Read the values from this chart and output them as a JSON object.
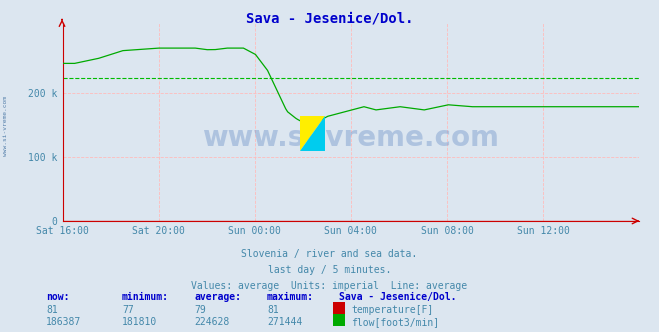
{
  "title": "Sava - Jesenice/Dol.",
  "title_color": "#0000cc",
  "bg_color": "#dce6f0",
  "plot_bg_color": "#dce6f0",
  "grid_color": "#ffbbbb",
  "tick_color": "#4488aa",
  "axis_color": "#cc0000",
  "watermark_text": "www.si-vreme.com",
  "watermark_color": "#7799cc",
  "watermark_alpha": 0.45,
  "side_text_color": "#336699",
  "subtitle1": "Slovenia / river and sea data.",
  "subtitle2": "last day / 5 minutes.",
  "subtitle3": "Values: average  Units: imperial  Line: average",
  "ylim": [
    0,
    310000
  ],
  "yticks": [
    0,
    100000,
    200000
  ],
  "yticklabels": [
    "0",
    "100 k",
    "200 k"
  ],
  "xtick_labels": [
    "Sat 16:00",
    "Sat 20:00",
    "Sun 00:00",
    "Sun 04:00",
    "Sun 08:00",
    "Sun 12:00"
  ],
  "avg_line_value": 224628,
  "avg_line_color": "#00bb00",
  "temp_color": "#cc0000",
  "flow_color": "#00aa00",
  "table_headers": [
    "now:",
    "minimum:",
    "average:",
    "maximum:",
    "Sava - Jesenice/Dol."
  ],
  "table_row1": [
    "81",
    "77",
    "79",
    "81"
  ],
  "table_row2": [
    "186387",
    "181810",
    "224628",
    "271444"
  ],
  "table_label1": "temperature[F]",
  "table_label2": "flow[foot3/min]",
  "logo_yellow": "#ffee00",
  "logo_cyan": "#00ccee",
  "n_points": 288
}
